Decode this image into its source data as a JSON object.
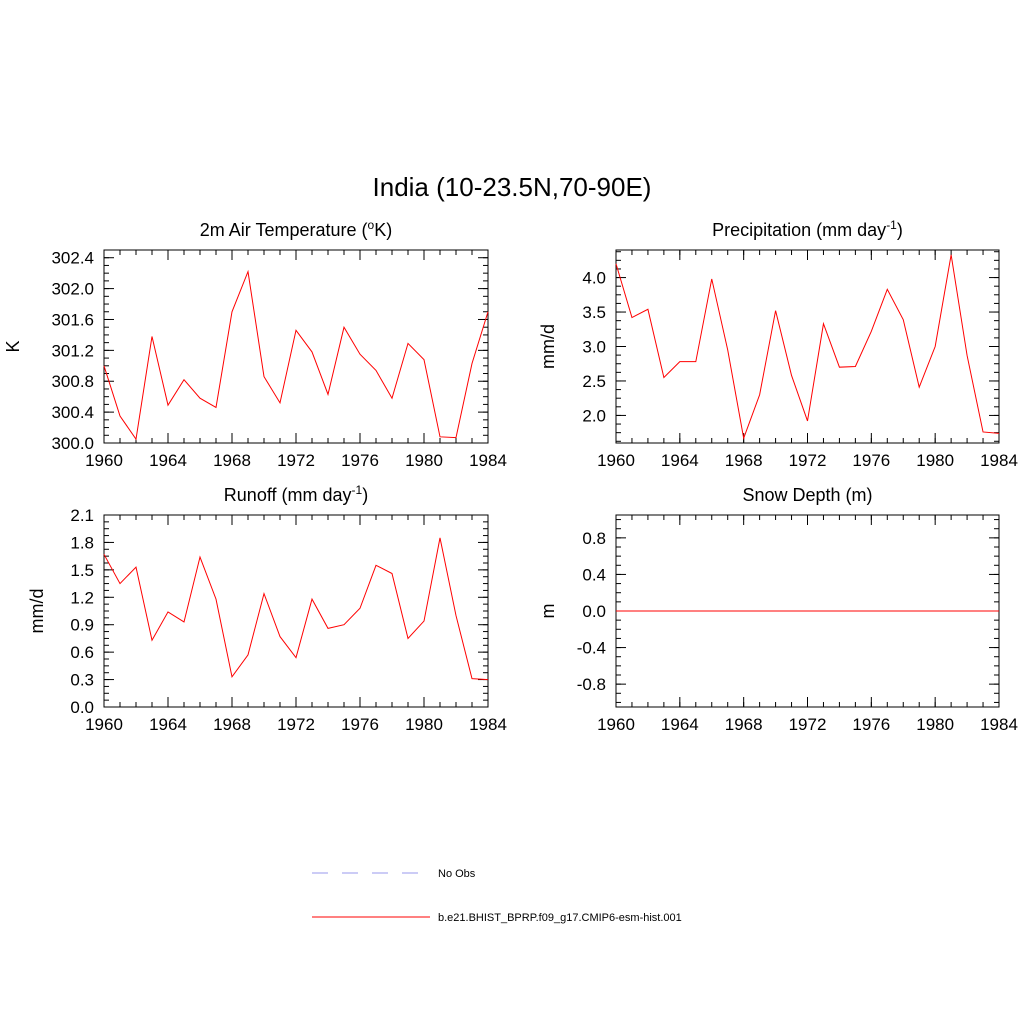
{
  "title": "India (10-23.5N,70-90E)",
  "colors": {
    "model": "#ff0000",
    "obs": "#9999ee",
    "axis": "#000000"
  },
  "legend": [
    {
      "label": "No Obs",
      "style": "dashed",
      "color": "#9999ee"
    },
    {
      "label": "b.e21.BHIST_BPRP.f09_g17.CMIP6-esm-hist.001",
      "style": "solid",
      "color": "#ff0000"
    }
  ],
  "chart_data": [
    {
      "type": "line",
      "title_main": "2m Air Temperature (",
      "title_sup": "o",
      "title_tail": "K)",
      "ylabel": "K",
      "xlim": [
        1960,
        1984
      ],
      "ylim": [
        300.0,
        302.5
      ],
      "xticks": [
        "1960",
        "1964",
        "1968",
        "1972",
        "1976",
        "1980",
        "1984"
      ],
      "yticks": [
        "300.0",
        "300.4",
        "300.8",
        "301.2",
        "301.6",
        "302.0",
        "302.4"
      ],
      "x": [
        1960,
        1961,
        1962,
        1963,
        1964,
        1965,
        1966,
        1967,
        1968,
        1969,
        1970,
        1971,
        1972,
        1973,
        1974,
        1975,
        1976,
        1977,
        1978,
        1979,
        1980,
        1981,
        1982,
        1983,
        1984
      ],
      "series": [
        {
          "name": "b.e21.BHIST_BPRP.f09_g17.CMIP6-esm-hist.001",
          "values": [
            301.0,
            300.35,
            300.05,
            301.38,
            300.49,
            300.82,
            300.58,
            300.46,
            301.7,
            302.22,
            300.86,
            300.52,
            301.46,
            301.18,
            300.63,
            301.5,
            301.15,
            300.94,
            300.58,
            301.29,
            301.08,
            300.08,
            300.07,
            301.03,
            301.7
          ]
        }
      ]
    },
    {
      "type": "line",
      "title_main": "Precipitation (mm day",
      "title_sup": "-1",
      "title_tail": ")",
      "ylabel": "mm/d",
      "xlim": [
        1960,
        1984
      ],
      "ylim": [
        1.6,
        4.4
      ],
      "xticks": [
        "1960",
        "1964",
        "1968",
        "1972",
        "1976",
        "1980",
        "1984"
      ],
      "yticks": [
        "2.0",
        "2.5",
        "3.0",
        "3.5",
        "4.0"
      ],
      "x": [
        1960,
        1961,
        1962,
        1963,
        1964,
        1965,
        1966,
        1967,
        1968,
        1969,
        1970,
        1971,
        1972,
        1973,
        1974,
        1975,
        1976,
        1977,
        1978,
        1979,
        1980,
        1981,
        1982,
        1983,
        1984
      ],
      "series": [
        {
          "name": "b.e21.BHIST_BPRP.f09_g17.CMIP6-esm-hist.001",
          "values": [
            4.2,
            3.42,
            3.54,
            2.55,
            2.78,
            2.78,
            3.98,
            2.95,
            1.67,
            2.3,
            3.52,
            2.58,
            1.92,
            3.33,
            2.7,
            2.71,
            3.22,
            3.83,
            3.39,
            2.41,
            3.0,
            4.33,
            2.87,
            1.76,
            1.74
          ]
        }
      ]
    },
    {
      "type": "line",
      "title_main": "Runoff (mm day",
      "title_sup": "-1",
      "title_tail": ")",
      "ylabel": "mm/d",
      "xlim": [
        1960,
        1984
      ],
      "ylim": [
        0.0,
        2.1
      ],
      "xticks": [
        "1960",
        "1964",
        "1968",
        "1972",
        "1976",
        "1980",
        "1984"
      ],
      "yticks": [
        "0.0",
        "0.3",
        "0.6",
        "0.9",
        "1.2",
        "1.5",
        "1.8",
        "2.1"
      ],
      "x": [
        1960,
        1961,
        1962,
        1963,
        1964,
        1965,
        1966,
        1967,
        1968,
        1969,
        1970,
        1971,
        1972,
        1973,
        1974,
        1975,
        1976,
        1977,
        1978,
        1979,
        1980,
        1981,
        1982,
        1983,
        1984
      ],
      "series": [
        {
          "name": "b.e21.BHIST_BPRP.f09_g17.CMIP6-esm-hist.001",
          "values": [
            1.67,
            1.35,
            1.53,
            0.73,
            1.04,
            0.93,
            1.64,
            1.18,
            0.33,
            0.57,
            1.24,
            0.77,
            0.54,
            1.18,
            0.86,
            0.9,
            1.08,
            1.55,
            1.46,
            0.75,
            0.94,
            1.85,
            1.0,
            0.31,
            0.3
          ]
        }
      ]
    },
    {
      "type": "line",
      "title_main": "Snow Depth (m)",
      "title_sup": "",
      "title_tail": "",
      "ylabel": "m",
      "xlim": [
        1960,
        1984
      ],
      "ylim": [
        -1.05,
        1.05
      ],
      "xticks": [
        "1960",
        "1964",
        "1968",
        "1972",
        "1976",
        "1980",
        "1984"
      ],
      "yticks": [
        "-0.8",
        "-0.4",
        "0.0",
        "0.4",
        "0.8"
      ],
      "x": [
        1960,
        1961,
        1962,
        1963,
        1964,
        1965,
        1966,
        1967,
        1968,
        1969,
        1970,
        1971,
        1972,
        1973,
        1974,
        1975,
        1976,
        1977,
        1978,
        1979,
        1980,
        1981,
        1982,
        1983,
        1984
      ],
      "series": [
        {
          "name": "b.e21.BHIST_BPRP.f09_g17.CMIP6-esm-hist.001",
          "values": [
            0,
            0,
            0,
            0,
            0,
            0,
            0,
            0,
            0,
            0,
            0,
            0,
            0,
            0,
            0,
            0,
            0,
            0,
            0,
            0,
            0,
            0,
            0,
            0,
            0
          ]
        }
      ]
    }
  ]
}
